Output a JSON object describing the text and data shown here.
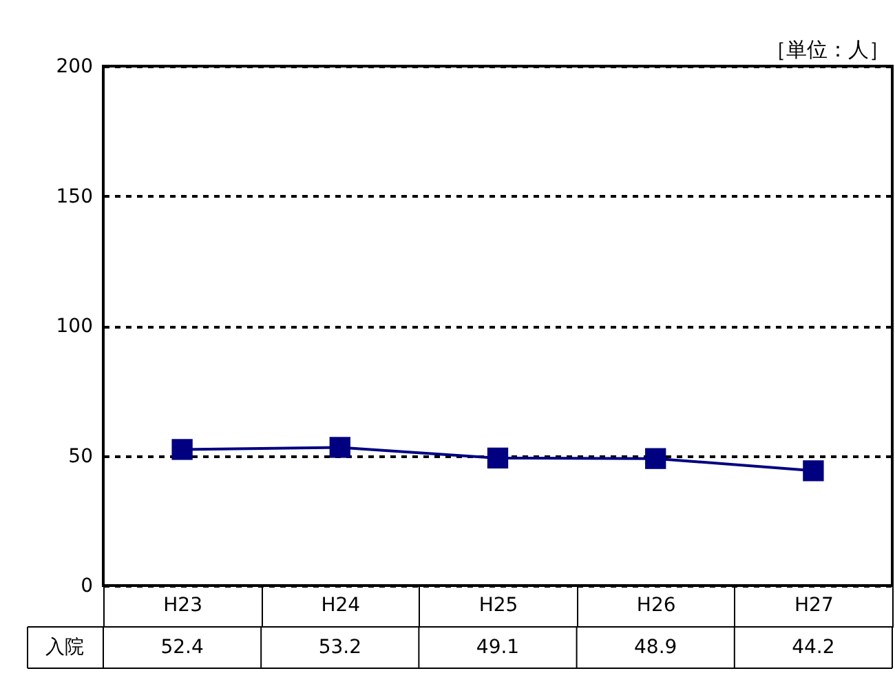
{
  "chart_data": {
    "type": "line",
    "categories": [
      "H23",
      "H24",
      "H25",
      "H26",
      "H27"
    ],
    "series": [
      {
        "name": "入院",
        "color": "#000080",
        "values": [
          52.4,
          53.2,
          49.1,
          48.9,
          44.2
        ]
      }
    ],
    "ylim": [
      0,
      200
    ],
    "yticks": [
      0,
      50,
      100,
      150,
      200
    ],
    "grid": "y",
    "line_style": "solid",
    "marker": "square",
    "data_labels": true,
    "annotations": [
      "［単位：人］"
    ]
  }
}
